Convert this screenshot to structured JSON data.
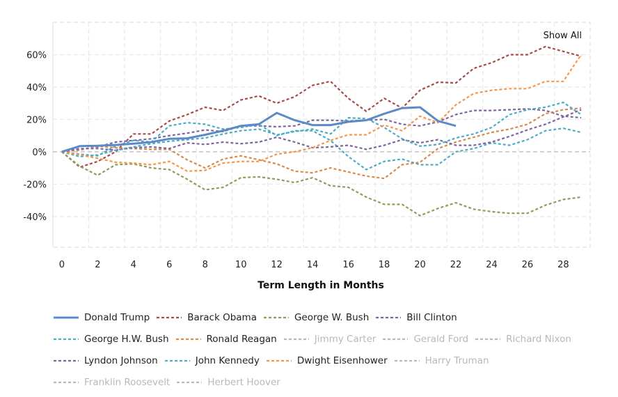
{
  "chart_data": {
    "type": "line",
    "title": "",
    "xlabel": "Term Length in Months",
    "ylabel": "",
    "xlim": [
      -0.5,
      29.5
    ],
    "ylim": [
      -59,
      80
    ],
    "x_ticks": [
      0,
      2,
      4,
      6,
      8,
      10,
      12,
      14,
      16,
      18,
      20,
      22,
      24,
      26,
      28
    ],
    "x_tick_labels": [
      "0",
      "2",
      "4",
      "6",
      "8",
      "10",
      "12",
      "14",
      "16",
      "18",
      "20",
      "22",
      "24",
      "26",
      "28"
    ],
    "y_ticks": [
      -40,
      -20,
      0,
      20,
      40,
      60
    ],
    "y_tick_labels": [
      "-40%",
      "-20%",
      "0%",
      "20%",
      "40%",
      "60%"
    ],
    "grid": true,
    "legend_position": "bottom",
    "show_all_label": "Show All",
    "series": [
      {
        "name": "Donald Trump",
        "color": "#5b8ac6",
        "style": "solid",
        "visible": true,
        "values": [
          0,
          3.5,
          3.7,
          4.2,
          5,
          6,
          8,
          8.3,
          10.5,
          13,
          16,
          17,
          24,
          19.5,
          16.5,
          16.5,
          18.5,
          19.5,
          23.5,
          27,
          27.5,
          19,
          16
        ]
      },
      {
        "name": "Barack Obama",
        "color": "#a94a4a",
        "style": "dotted",
        "visible": true,
        "values": [
          0,
          -9.5,
          -6,
          0,
          11,
          11,
          19,
          23,
          27.5,
          25.5,
          32,
          34.5,
          30,
          34,
          41,
          43.5,
          33,
          25,
          33,
          27,
          38,
          43,
          42.5,
          51.5,
          55,
          60,
          60,
          65,
          62,
          59
        ]
      },
      {
        "name": "George W. Bush",
        "color": "#87a05a",
        "style": "dotted",
        "visible": true,
        "values": [
          0,
          -9,
          -14.5,
          -8,
          -7.5,
          -10,
          -11,
          -17,
          -23.5,
          -22,
          -16,
          -15.5,
          -17,
          -19,
          -16,
          -21,
          -22,
          -28,
          -32.5,
          -32.5,
          -39.5,
          -35,
          -31.5,
          -35.5,
          -37,
          -38,
          -38,
          -33,
          -29.5,
          -28
        ]
      },
      {
        "name": "Bill Clinton",
        "color": "#8064a2",
        "style": "dotted",
        "visible": true,
        "values": [
          0,
          1.5,
          3,
          6,
          7,
          8,
          10,
          11.5,
          13.5,
          12.5,
          16,
          16,
          15.5,
          16,
          19.5,
          19.5,
          19,
          19.5,
          20,
          17,
          16,
          18.5,
          23,
          25.5,
          25.5,
          26,
          26.5,
          25.5,
          22,
          21
        ]
      },
      {
        "name": "George H.W. Bush",
        "color": "#4bacc6",
        "style": "dotted",
        "visible": true,
        "values": [
          0,
          -1.5,
          -2.5,
          3.5,
          7,
          6,
          16,
          18,
          17,
          14,
          15,
          17,
          10,
          13,
          13,
          7,
          -3,
          -11,
          -6,
          -4.5,
          -8,
          -8,
          0,
          2,
          5.5,
          4,
          7.5,
          13,
          14.5,
          12
        ]
      },
      {
        "name": "Ronald Reagan",
        "color": "#d88a4a",
        "style": "dotted",
        "visible": true,
        "values": [
          0,
          1,
          3.5,
          2.5,
          2,
          1.5,
          1.5,
          -5,
          -10,
          -4.5,
          -2.5,
          -5,
          -7.5,
          -12,
          -13,
          -10,
          -12.5,
          -15,
          -16.5,
          -8,
          -6.5,
          2,
          6,
          9,
          12,
          14,
          17,
          23.5,
          26,
          27
        ]
      },
      {
        "name": "Jimmy Carter",
        "color": "#c8c8c8",
        "style": "dotted",
        "visible": false,
        "values": []
      },
      {
        "name": "Gerald Ford",
        "color": "#c8c8c8",
        "style": "dotted",
        "visible": false,
        "values": []
      },
      {
        "name": "Richard Nixon",
        "color": "#c8c8c8",
        "style": "dotted",
        "visible": false,
        "values": []
      },
      {
        "name": "Lyndon Johnson",
        "color": "#8064a2",
        "style": "dotted",
        "visible": true,
        "values": [
          0,
          2,
          2,
          1,
          2.5,
          3,
          2,
          5.5,
          4.5,
          6,
          5,
          6,
          9,
          6,
          2.5,
          3,
          4,
          1.5,
          4,
          7.5,
          5.5,
          7.5,
          4,
          4,
          6,
          9.5,
          13.5,
          17,
          21.5,
          26
        ]
      },
      {
        "name": "John Kennedy",
        "color": "#4bacc6",
        "style": "dotted",
        "visible": true,
        "values": [
          0,
          -3,
          -2,
          1,
          3,
          5,
          6.5,
          7.5,
          8.5,
          11,
          13,
          14,
          10.5,
          12.5,
          14,
          11,
          21,
          20.5,
          15,
          8,
          3.5,
          4.5,
          8.5,
          11,
          15,
          23,
          26,
          27.5,
          30.5,
          23
        ]
      },
      {
        "name": "Dwight Eisenhower",
        "color": "#f79646",
        "style": "dotted",
        "visible": true,
        "values": [
          0,
          -2,
          -4,
          -6.5,
          -7,
          -8,
          -6,
          -12,
          -11.5,
          -7,
          -6,
          -6,
          -1.5,
          0,
          2.5,
          7,
          10.5,
          10.5,
          16.5,
          13,
          22,
          18,
          29,
          36,
          38,
          39,
          39,
          43.5,
          43.5,
          60
        ]
      },
      {
        "name": "Harry Truman",
        "color": "#c8c8c8",
        "style": "dotted",
        "visible": false,
        "values": []
      },
      {
        "name": "Franklin Roosevelt",
        "color": "#c8c8c8",
        "style": "dotted",
        "visible": false,
        "values": []
      },
      {
        "name": "Herbert Hoover",
        "color": "#c8c8c8",
        "style": "dotted",
        "visible": false,
        "values": []
      }
    ]
  },
  "legend_rows": [
    [
      0,
      1,
      2,
      3
    ],
    [
      4,
      5,
      6,
      7,
      8
    ],
    [
      9,
      10,
      11,
      12
    ],
    [
      13,
      14
    ]
  ],
  "hidden_legend_color": "#b8b8b8"
}
